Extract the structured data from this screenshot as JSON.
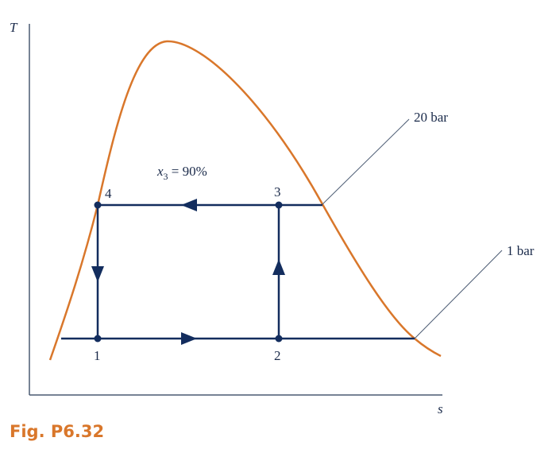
{
  "axes": {
    "y_label": "T",
    "x_label": "s"
  },
  "dome_labels": {
    "high_pressure": "20 bar",
    "low_pressure": "1 bar"
  },
  "quality_label": {
    "var": "x",
    "sub": "3",
    "rest": " = 90%"
  },
  "states": [
    {
      "id": "1",
      "label": "1"
    },
    {
      "id": "2",
      "label": "2"
    },
    {
      "id": "3",
      "label": "3"
    },
    {
      "id": "4",
      "label": "4"
    }
  ],
  "caption": "Fig. P6.32",
  "colors": {
    "dome": "#d9772b",
    "cycle": "#132d5e",
    "axes": "#4a5a72",
    "caption": "#d9772b"
  }
}
